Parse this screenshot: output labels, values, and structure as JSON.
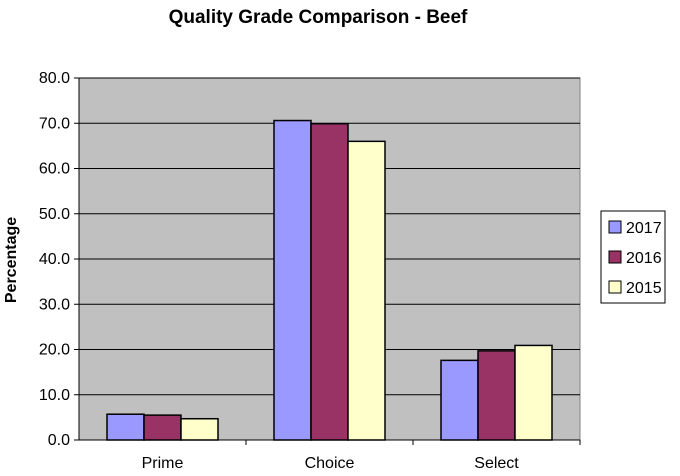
{
  "chart_data": {
    "type": "bar",
    "title": "Quality Grade Comparison - Beef",
    "xlabel": "",
    "ylabel": "Percentage",
    "categories": [
      "Prime",
      "Choice",
      "Select"
    ],
    "series": [
      {
        "name": "2017",
        "color": "#9999ff",
        "values": [
          5.7,
          70.6,
          17.6
        ]
      },
      {
        "name": "2016",
        "color": "#993366",
        "values": [
          5.5,
          69.9,
          19.7
        ]
      },
      {
        "name": "2015",
        "color": "#ffffcc",
        "values": [
          4.7,
          66.0,
          20.9
        ]
      }
    ],
    "ylim": [
      0,
      80
    ],
    "yticks": [
      "0.0",
      "10.0",
      "20.0",
      "30.0",
      "40.0",
      "50.0",
      "60.0",
      "70.0",
      "80.0"
    ],
    "grid": true,
    "plot_background": "#c0c0c0",
    "legend_position": "right"
  }
}
